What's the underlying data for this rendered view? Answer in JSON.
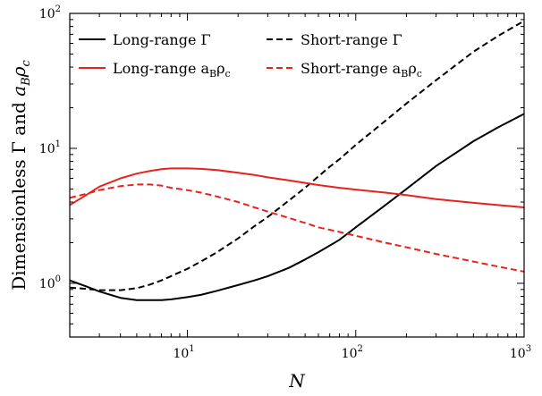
{
  "chart_data": {
    "type": "line",
    "xlabel": "N",
    "ylabel": "Dimensionless Γ and a_B ρ_c",
    "xscale": "log",
    "yscale": "log",
    "xlim": [
      2,
      1000
    ],
    "ylim": [
      0.4,
      100
    ],
    "x_ticks": [
      {
        "value": 10,
        "label": "10",
        "exp": "1"
      },
      {
        "value": 100,
        "label": "10",
        "exp": "2"
      },
      {
        "value": 1000,
        "label": "10",
        "exp": "3"
      }
    ],
    "y_ticks": [
      {
        "value": 1,
        "label": "10",
        "exp": "0"
      },
      {
        "value": 10,
        "label": "10",
        "exp": "1"
      },
      {
        "value": 100,
        "label": "10",
        "exp": "2"
      }
    ],
    "grid": false,
    "legend_position": "top",
    "legend": [
      {
        "base": "Long-range ",
        "sym": "Γ",
        "sub": "",
        "color": "#000000",
        "dash": "solid"
      },
      {
        "base": "Short-range ",
        "sym": "Γ",
        "sub": "",
        "color": "#000000",
        "dash": "dashed"
      },
      {
        "base": "Long-range a",
        "sym": "B",
        "sub": "ρc",
        "color": "#e8211b",
        "dash": "solid"
      },
      {
        "base": "Short-range a",
        "sym": "B",
        "sub": "ρc",
        "color": "#e8211b",
        "dash": "dashed"
      }
    ],
    "series": [
      {
        "name": "Long-range Γ",
        "color": "#000000",
        "dash": "solid",
        "points": [
          [
            2,
            1.05
          ],
          [
            2.5,
            0.95
          ],
          [
            3,
            0.87
          ],
          [
            4,
            0.78
          ],
          [
            5,
            0.75
          ],
          [
            6,
            0.75
          ],
          [
            7,
            0.75
          ],
          [
            8,
            0.76
          ],
          [
            10,
            0.79
          ],
          [
            12,
            0.82
          ],
          [
            15,
            0.88
          ],
          [
            20,
            0.97
          ],
          [
            25,
            1.05
          ],
          [
            30,
            1.13
          ],
          [
            40,
            1.3
          ],
          [
            50,
            1.5
          ],
          [
            60,
            1.7
          ],
          [
            70,
            1.9
          ],
          [
            80,
            2.1
          ],
          [
            100,
            2.6
          ],
          [
            150,
            3.8
          ],
          [
            200,
            5.0
          ],
          [
            300,
            7.4
          ],
          [
            500,
            11.3
          ],
          [
            700,
            14.3
          ],
          [
            1000,
            18
          ]
        ]
      },
      {
        "name": "Short-range Γ",
        "color": "#000000",
        "dash": "dashed",
        "points": [
          [
            2,
            0.93
          ],
          [
            2.5,
            0.91
          ],
          [
            3,
            0.89
          ],
          [
            4,
            0.89
          ],
          [
            5,
            0.92
          ],
          [
            6,
            0.98
          ],
          [
            7,
            1.05
          ],
          [
            8,
            1.13
          ],
          [
            10,
            1.28
          ],
          [
            12,
            1.45
          ],
          [
            15,
            1.7
          ],
          [
            20,
            2.15
          ],
          [
            25,
            2.65
          ],
          [
            30,
            3.1
          ],
          [
            40,
            4.1
          ],
          [
            50,
            5.1
          ],
          [
            60,
            6.2
          ],
          [
            70,
            7.3
          ],
          [
            80,
            8.3
          ],
          [
            100,
            10.6
          ],
          [
            150,
            16
          ],
          [
            200,
            21.5
          ],
          [
            300,
            32
          ],
          [
            500,
            52
          ],
          [
            700,
            68
          ],
          [
            1000,
            88
          ]
        ]
      },
      {
        "name": "Long-range a_B ρ_c",
        "color": "#e8211b",
        "dash": "solid",
        "points": [
          [
            2,
            3.8
          ],
          [
            2.5,
            4.5
          ],
          [
            3,
            5.2
          ],
          [
            4,
            6.0
          ],
          [
            5,
            6.5
          ],
          [
            6,
            6.8
          ],
          [
            7,
            7.0
          ],
          [
            8,
            7.1
          ],
          [
            10,
            7.1
          ],
          [
            12,
            7.05
          ],
          [
            15,
            6.9
          ],
          [
            20,
            6.6
          ],
          [
            25,
            6.35
          ],
          [
            30,
            6.1
          ],
          [
            40,
            5.8
          ],
          [
            50,
            5.55
          ],
          [
            60,
            5.35
          ],
          [
            80,
            5.1
          ],
          [
            100,
            4.95
          ],
          [
            150,
            4.7
          ],
          [
            200,
            4.5
          ],
          [
            300,
            4.2
          ],
          [
            500,
            3.95
          ],
          [
            700,
            3.8
          ],
          [
            1000,
            3.65
          ]
        ]
      },
      {
        "name": "Short-range a_B ρ_c",
        "color": "#e8211b",
        "dash": "dashed",
        "points": [
          [
            2,
            4.3
          ],
          [
            2.5,
            4.6
          ],
          [
            3,
            4.9
          ],
          [
            4,
            5.25
          ],
          [
            5,
            5.4
          ],
          [
            6,
            5.4
          ],
          [
            7,
            5.3
          ],
          [
            8,
            5.1
          ],
          [
            10,
            4.9
          ],
          [
            12,
            4.7
          ],
          [
            15,
            4.4
          ],
          [
            20,
            4.0
          ],
          [
            25,
            3.65
          ],
          [
            30,
            3.4
          ],
          [
            40,
            3.05
          ],
          [
            50,
            2.8
          ],
          [
            60,
            2.6
          ],
          [
            80,
            2.4
          ],
          [
            100,
            2.25
          ],
          [
            150,
            2.0
          ],
          [
            200,
            1.85
          ],
          [
            300,
            1.65
          ],
          [
            500,
            1.45
          ],
          [
            700,
            1.33
          ],
          [
            1000,
            1.22
          ]
        ]
      }
    ]
  }
}
